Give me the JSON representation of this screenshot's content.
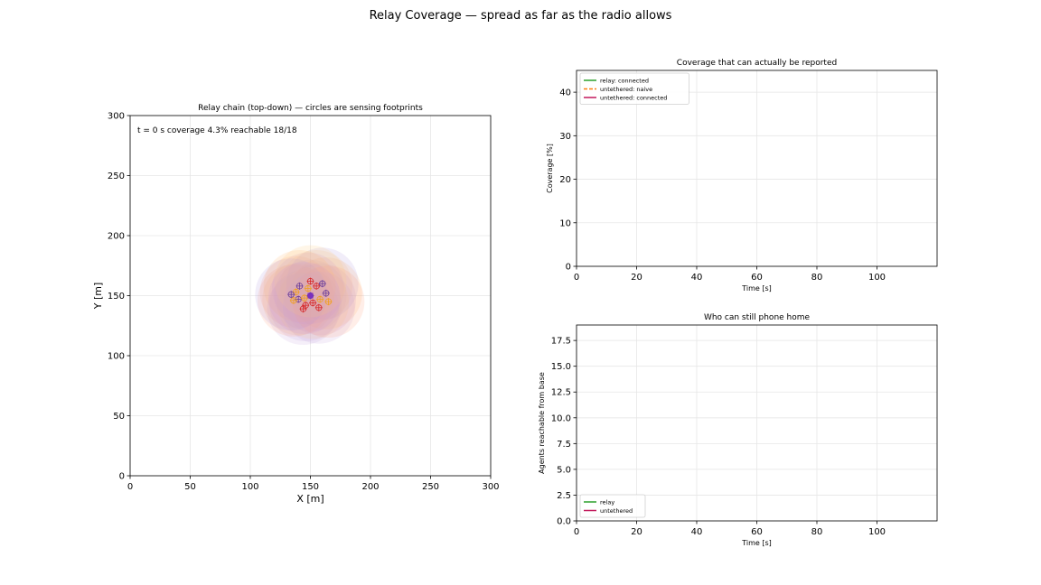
{
  "figure": {
    "suptitle": "Relay Coverage — spread as far as the radio allows"
  },
  "chart_data": [
    {
      "type": "scatter",
      "title": "Relay chain (top-down) — circles are sensing footprints",
      "xlabel": "X [m]",
      "ylabel": "Y [m]",
      "xlim": [
        0,
        300
      ],
      "ylim": [
        0,
        300
      ],
      "xticks": [
        0,
        50,
        100,
        150,
        200,
        250,
        300
      ],
      "yticks": [
        0,
        50,
        100,
        150,
        200,
        250,
        300
      ],
      "grid": true,
      "annotation": "t = 0 s   coverage 4.3%   reachable 18/18",
      "footprint_radius": 30,
      "colors": {
        "relay": "#6a3d9a",
        "untethered": "#d62728",
        "footprints": "#ff9933",
        "path": "#f0a020",
        "base": "#7b2fbf"
      },
      "agents": [
        {
          "x": 140,
          "y": 147
        },
        {
          "x": 146,
          "y": 142
        },
        {
          "x": 138,
          "y": 153
        },
        {
          "x": 150,
          "y": 150
        },
        {
          "x": 155,
          "y": 158
        },
        {
          "x": 158,
          "y": 147
        },
        {
          "x": 163,
          "y": 152
        },
        {
          "x": 144,
          "y": 139
        },
        {
          "x": 136,
          "y": 146
        },
        {
          "x": 160,
          "y": 160
        },
        {
          "x": 152,
          "y": 144
        },
        {
          "x": 148,
          "y": 156
        },
        {
          "x": 141,
          "y": 158
        },
        {
          "x": 157,
          "y": 140
        },
        {
          "x": 165,
          "y": 145
        },
        {
          "x": 134,
          "y": 151
        },
        {
          "x": 150,
          "y": 162
        },
        {
          "x": 145,
          "y": 148
        }
      ]
    },
    {
      "type": "line",
      "title": "Coverage that can actually be reported",
      "xlabel": "Time [s]",
      "ylabel": "Coverage [%]",
      "xlim": [
        0,
        120
      ],
      "ylim": [
        0,
        45
      ],
      "xticks": [
        0,
        20,
        40,
        60,
        80,
        100
      ],
      "yticks": [
        0,
        10,
        20,
        30,
        40
      ],
      "grid": true,
      "legend_position": "top-left",
      "series": [
        {
          "name": "relay: connected",
          "color": "#2ca02c",
          "dash": "",
          "x": [],
          "y": []
        },
        {
          "name": "untethered: naive",
          "color": "#ff7f0e",
          "dash": "4,2",
          "x": [],
          "y": []
        },
        {
          "name": "untethered: connected",
          "color": "#c2185b",
          "dash": "",
          "x": [],
          "y": []
        }
      ]
    },
    {
      "type": "line",
      "title": "Who can still phone home",
      "xlabel": "Time [s]",
      "ylabel": "Agents reachable from base",
      "xlim": [
        0,
        120
      ],
      "ylim": [
        0,
        19
      ],
      "xticks": [
        0,
        20,
        40,
        60,
        80,
        100
      ],
      "yticks": [
        0.0,
        2.5,
        5.0,
        7.5,
        10.0,
        12.5,
        15.0,
        17.5
      ],
      "grid": true,
      "legend_position": "bottom-left",
      "series": [
        {
          "name": "relay",
          "color": "#2ca02c",
          "dash": "",
          "x": [],
          "y": []
        },
        {
          "name": "untethered",
          "color": "#c2185b",
          "dash": "",
          "x": [],
          "y": []
        }
      ]
    }
  ]
}
